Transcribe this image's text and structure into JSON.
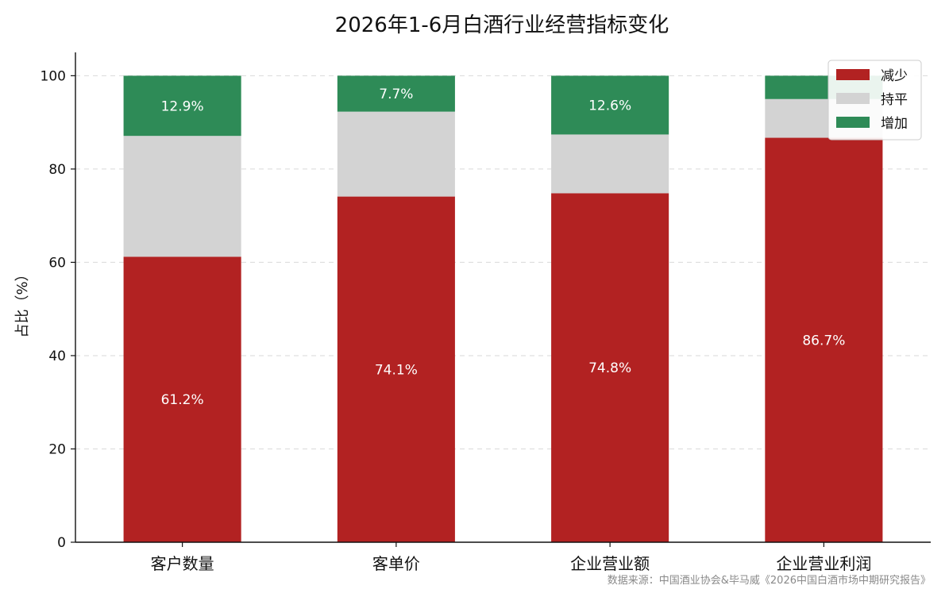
{
  "chart_data": {
    "type": "bar",
    "stacked": true,
    "title": "2026年1-6月白酒行业经营指标变化",
    "ylabel": "占比（%）",
    "xlabel": "",
    "ylim": [
      0,
      105
    ],
    "yticks": [
      0,
      20,
      40,
      60,
      80,
      100
    ],
    "grid": "y-dashed",
    "legend_position": "top-right",
    "categories": [
      "客户数量",
      "客单价",
      "企业营业额",
      "企业营业利润"
    ],
    "series": [
      {
        "name": "减少",
        "color": "#b22222",
        "values": [
          61.2,
          74.1,
          74.8,
          86.7
        ],
        "labels": [
          "61.2%",
          "74.1%",
          "74.8%",
          "86.7%"
        ]
      },
      {
        "name": "持平",
        "color": "#d3d3d3",
        "values": [
          25.9,
          18.2,
          12.6,
          8.3
        ],
        "labels": [
          "",
          "",
          "",
          ""
        ]
      },
      {
        "name": "增加",
        "color": "#2e8b57",
        "values": [
          12.9,
          7.7,
          12.6,
          5.0
        ],
        "labels": [
          "12.9%",
          "7.7%",
          "12.6%",
          ""
        ]
      }
    ],
    "source": "数据来源：中国酒业协会&毕马威《2026中国白酒市场中期研究报告》"
  }
}
